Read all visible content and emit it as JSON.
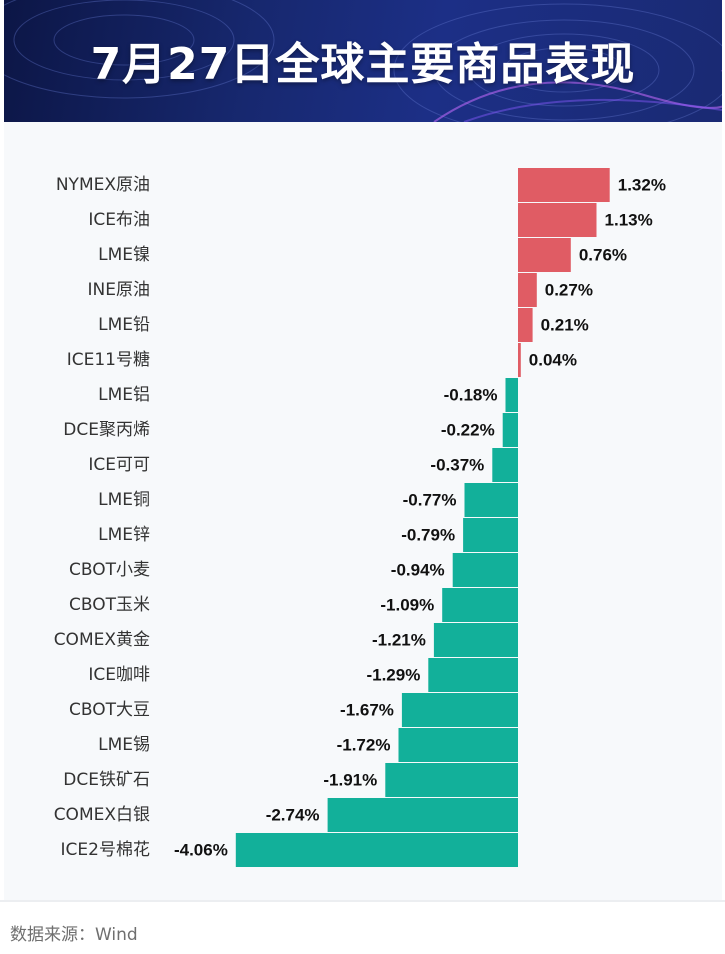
{
  "header": {
    "title": "7月27日全球主要商品表现"
  },
  "footer": {
    "source": "数据来源：Wind"
  },
  "colors": {
    "positive": "#e05c64",
    "negative": "#12b09a",
    "banner": "#17286f"
  },
  "chart_data": {
    "type": "bar",
    "orientation": "horizontal",
    "title": "7月27日全球主要商品表现",
    "unit": "%",
    "grid": false,
    "categories": [
      "NYMEX原油",
      "ICE布油",
      "LME镍",
      "INE原油",
      "LME铅",
      "ICE11号糖",
      "LME铝",
      "DCE聚丙烯",
      "ICE可可",
      "LME铜",
      "LME锌",
      "CBOT小麦",
      "CBOT玉米",
      "COMEX黄金",
      "ICE咖啡",
      "CBOT大豆",
      "LME锡",
      "DCE铁矿石",
      "COMEX白银",
      "ICE2号棉花"
    ],
    "values": [
      1.32,
      1.13,
      0.76,
      0.27,
      0.21,
      0.04,
      -0.18,
      -0.22,
      -0.37,
      -0.77,
      -0.79,
      -0.94,
      -1.09,
      -1.21,
      -1.29,
      -1.67,
      -1.72,
      -1.91,
      -2.74,
      -4.06
    ],
    "value_labels": [
      "1.32%",
      "1.13%",
      "0.76%",
      "0.27%",
      "0.21%",
      "0.04%",
      "-0.18%",
      "-0.22%",
      "-0.37%",
      "-0.77%",
      "-0.79%",
      "-0.94%",
      "-1.09%",
      "-1.21%",
      "-1.29%",
      "-1.67%",
      "-1.72%",
      "-1.91%",
      "-2.74%",
      "-4.06%"
    ]
  }
}
